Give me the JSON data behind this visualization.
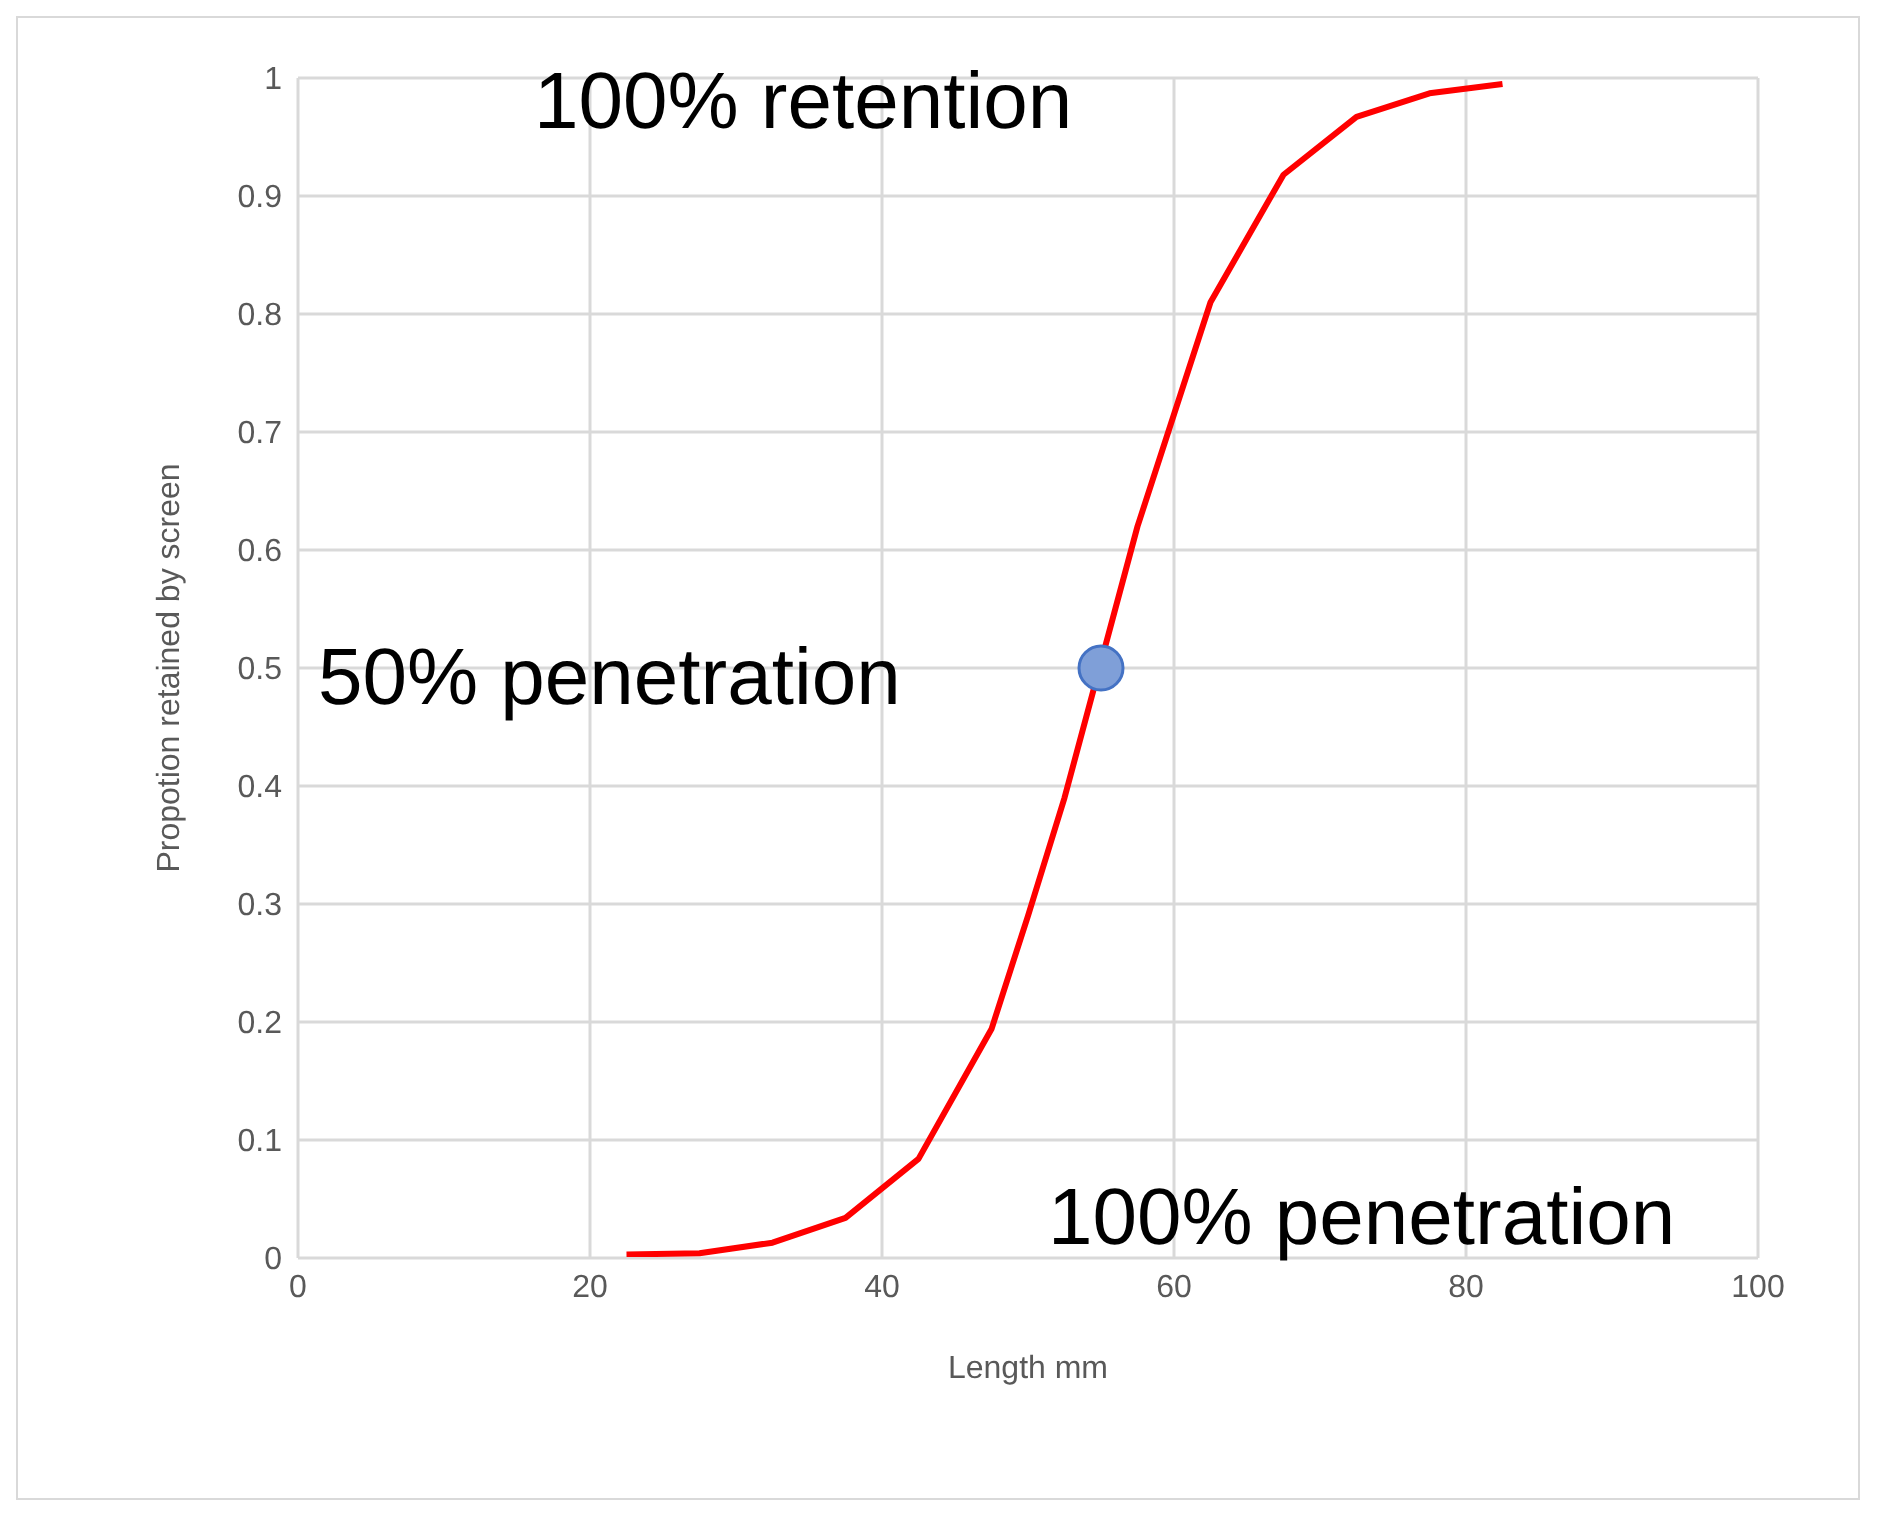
{
  "chart_data": {
    "type": "line",
    "xlabel": "Length mm",
    "ylabel": "Propotion retained by screen",
    "xlim": [
      0,
      100
    ],
    "xticks": [
      0,
      20,
      40,
      60,
      80,
      100
    ],
    "ylim": [
      0,
      1
    ],
    "yticks": [
      0,
      0.1,
      0.2,
      0.3,
      0.4,
      0.5,
      0.6,
      0.7,
      0.8,
      0.9,
      1
    ],
    "grid": true,
    "legend": false,
    "marker": "none",
    "line_style": "solid",
    "series": [
      {
        "type": "line",
        "color": "#ff0000",
        "x": [
          22.5,
          27.5,
          32.5,
          37.5,
          42.5,
          47.5,
          50,
          52.5,
          57.5,
          62.5,
          67.5,
          72.5,
          77.5,
          82.5
        ],
        "values": [
          0.003,
          0.004,
          0.013,
          0.034,
          0.084,
          0.194,
          0.29,
          0.39,
          0.62,
          0.81,
          0.918,
          0.967,
          0.987,
          0.995
        ]
      },
      {
        "type": "scatter",
        "color": "#7f9fd8",
        "marker": "circle",
        "x": [
          55
        ],
        "values": [
          0.5
        ]
      }
    ],
    "annotations": [
      "100% retention",
      "50% penetration",
      "100% penetration"
    ]
  }
}
